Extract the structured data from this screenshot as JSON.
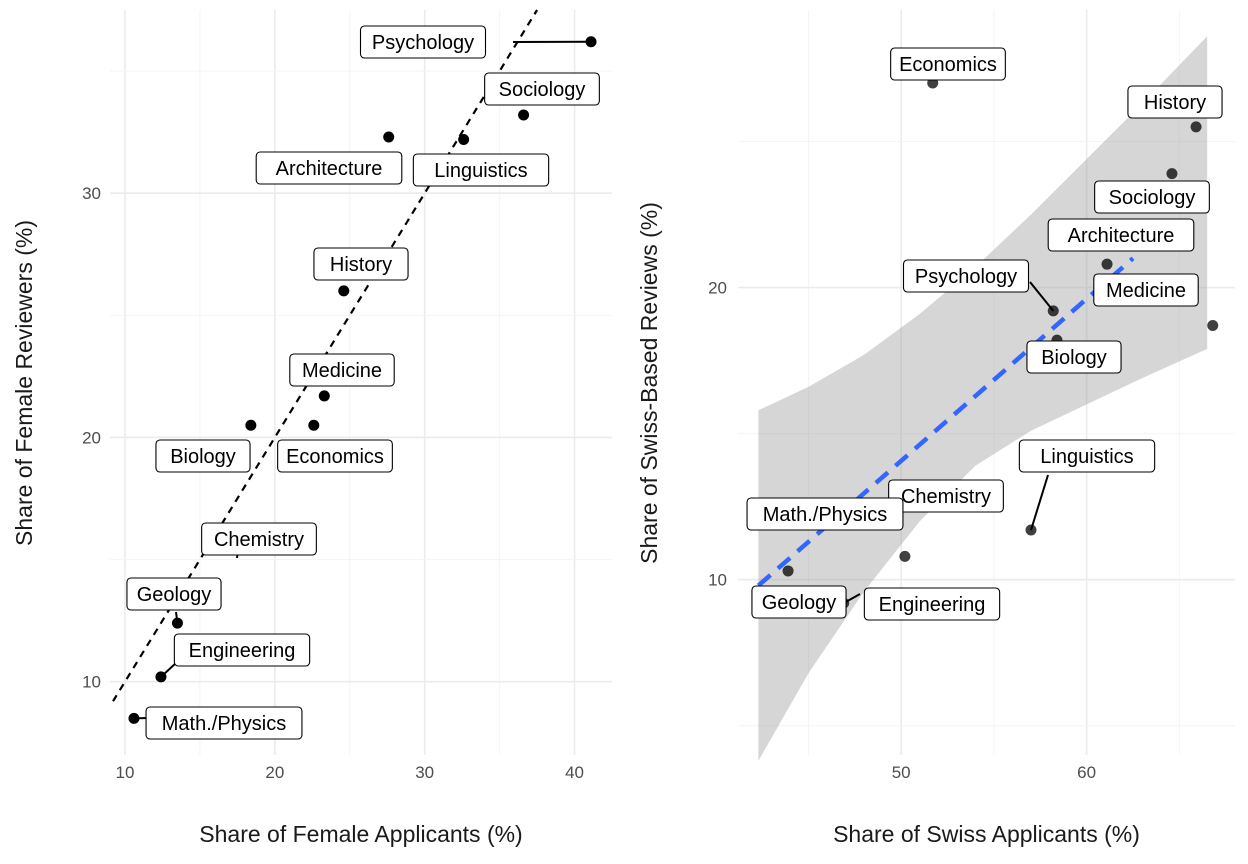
{
  "chart_data": [
    {
      "type": "scatter",
      "xlabel": "Share of Female Applicants (%)",
      "ylabel": "Share of Female Reviewers (%)",
      "xlim": [
        9,
        42.5
      ],
      "ylim": [
        7,
        37.5
      ],
      "x_ticks": [
        10,
        20,
        30,
        40
      ],
      "y_ticks": [
        10,
        20,
        30
      ],
      "grid": true,
      "fit_line": {
        "style": "dashed",
        "x": [
          9.2,
          37.5
        ],
        "y": [
          9.2,
          37.5
        ]
      },
      "points": [
        {
          "label": "Psychology",
          "x": 41.1,
          "y": 36.2
        },
        {
          "label": "Sociology",
          "x": 36.6,
          "y": 33.2
        },
        {
          "label": "Architecture",
          "x": 27.6,
          "y": 32.3
        },
        {
          "label": "Linguistics",
          "x": 32.6,
          "y": 32.2
        },
        {
          "label": "History",
          "x": 24.6,
          "y": 26.0
        },
        {
          "label": "Medicine",
          "x": 23.3,
          "y": 21.7
        },
        {
          "label": "Biology",
          "x": 18.4,
          "y": 20.5
        },
        {
          "label": "Economics",
          "x": 22.6,
          "y": 20.5
        },
        {
          "label": "Chemistry",
          "x": 17.6,
          "y": 15.7
        },
        {
          "label": "Geology",
          "x": 13.5,
          "y": 12.4
        },
        {
          "label": "Engineering",
          "x": 12.4,
          "y": 10.2
        },
        {
          "label": "Math./Physics",
          "x": 10.6,
          "y": 8.5
        }
      ]
    },
    {
      "type": "scatter",
      "xlabel": "Share of Swiss Applicants (%)",
      "ylabel": "Share of Swiss-Based Reviews (%)",
      "xlim": [
        41.2,
        68.0
      ],
      "ylim": [
        4,
        29.5
      ],
      "x_ticks": [
        50,
        60
      ],
      "y_ticks": [
        10,
        20
      ],
      "grid": true,
      "fit_line": {
        "style": "dashed",
        "color": "#3366ff",
        "x": [
          42.3,
          62.5
        ],
        "y": [
          9.8,
          21.0
        ]
      },
      "confidence_band": {
        "color": "#999999",
        "x": [
          42.3,
          45,
          48,
          51,
          54,
          57,
          60,
          63,
          66.5
        ],
        "upper": [
          15.8,
          16.6,
          17.7,
          19.1,
          20.7,
          22.5,
          24.4,
          26.3,
          28.6
        ],
        "lower": [
          3.8,
          6.8,
          9.6,
          12.0,
          13.9,
          15.1,
          16.0,
          16.9,
          17.9
        ]
      },
      "points": [
        {
          "label": "Economics",
          "x": 51.7,
          "y": 27.0
        },
        {
          "label": "History",
          "x": 65.9,
          "y": 25.5
        },
        {
          "label": "Sociology",
          "x": 64.6,
          "y": 23.9
        },
        {
          "label": "Architecture",
          "x": 61.1,
          "y": 20.8
        },
        {
          "label": "Psychology",
          "x": 58.2,
          "y": 19.2
        },
        {
          "label": "Medicine",
          "x": 66.8,
          "y": 18.7
        },
        {
          "label": "Biology",
          "x": 58.4,
          "y": 18.2
        },
        {
          "label": "Linguistics",
          "x": 57.0,
          "y": 11.7
        },
        {
          "label": "Chemistry",
          "x": 50.2,
          "y": 10.8
        },
        {
          "label": "Math./Physics",
          "x": 43.9,
          "y": 10.3
        },
        {
          "label": "Engineering",
          "x": 46.9,
          "y": 9.2
        },
        {
          "label": "Geology",
          "x": 42.3,
          "y": 9.0
        }
      ]
    }
  ]
}
